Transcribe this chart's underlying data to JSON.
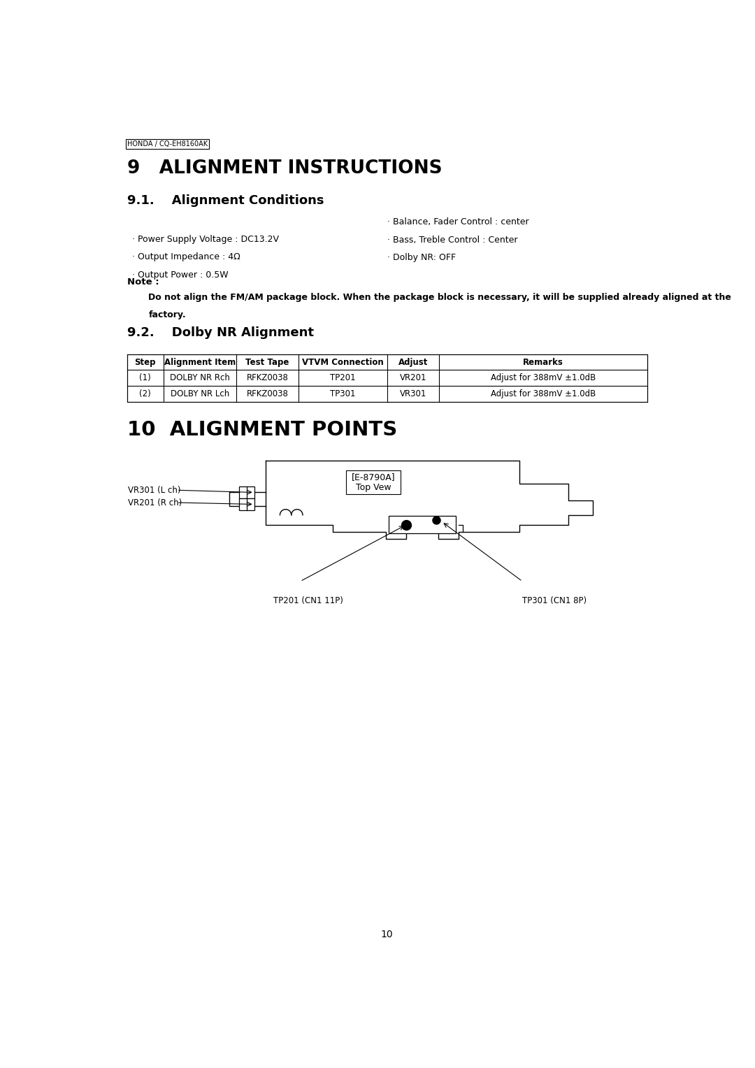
{
  "page_label": "HONDA / CQ-EH8160AK",
  "section9_title": "9   ALIGNMENT INSTRUCTIONS",
  "section91_title": "9.1.    Alignment Conditions",
  "conditions_left": [
    "· Power Supply Voltage : DC13.2V",
    "· Output Impedance : 4Ω",
    "· Output Power : 0.5W"
  ],
  "conditions_right": [
    "· Balance, Fader Control : center",
    "· Bass, Treble Control : Center",
    "· Dolby NR: OFF"
  ],
  "note_label": "Note :",
  "note_text": "Do not align the FM/AM package block. When the package block is necessary, it will be supplied already aligned at the\nfactory.",
  "section92_title": "9.2.    Dolby NR Alignment",
  "table_headers": [
    "Step",
    "Alignment Item",
    "Test Tape",
    "VTVM Connection",
    "Adjust",
    "Remarks"
  ],
  "table_rows": [
    [
      "(1)",
      "DOLBY NR Rch",
      "RFKZ0038",
      "TP201",
      "VR201",
      "Adjust for 388mV ±1.0dB"
    ],
    [
      "(2)",
      "DOLBY NR Lch",
      "RFKZ0038",
      "TP301",
      "VR301",
      "Adjust for 388mV ±1.0dB"
    ]
  ],
  "section10_title": "10  ALIGNMENT POINTS",
  "diagram_label": "[E-8790A]\nTop Vew",
  "page_number": "10",
  "bg_color": "#ffffff",
  "text_color": "#000000"
}
